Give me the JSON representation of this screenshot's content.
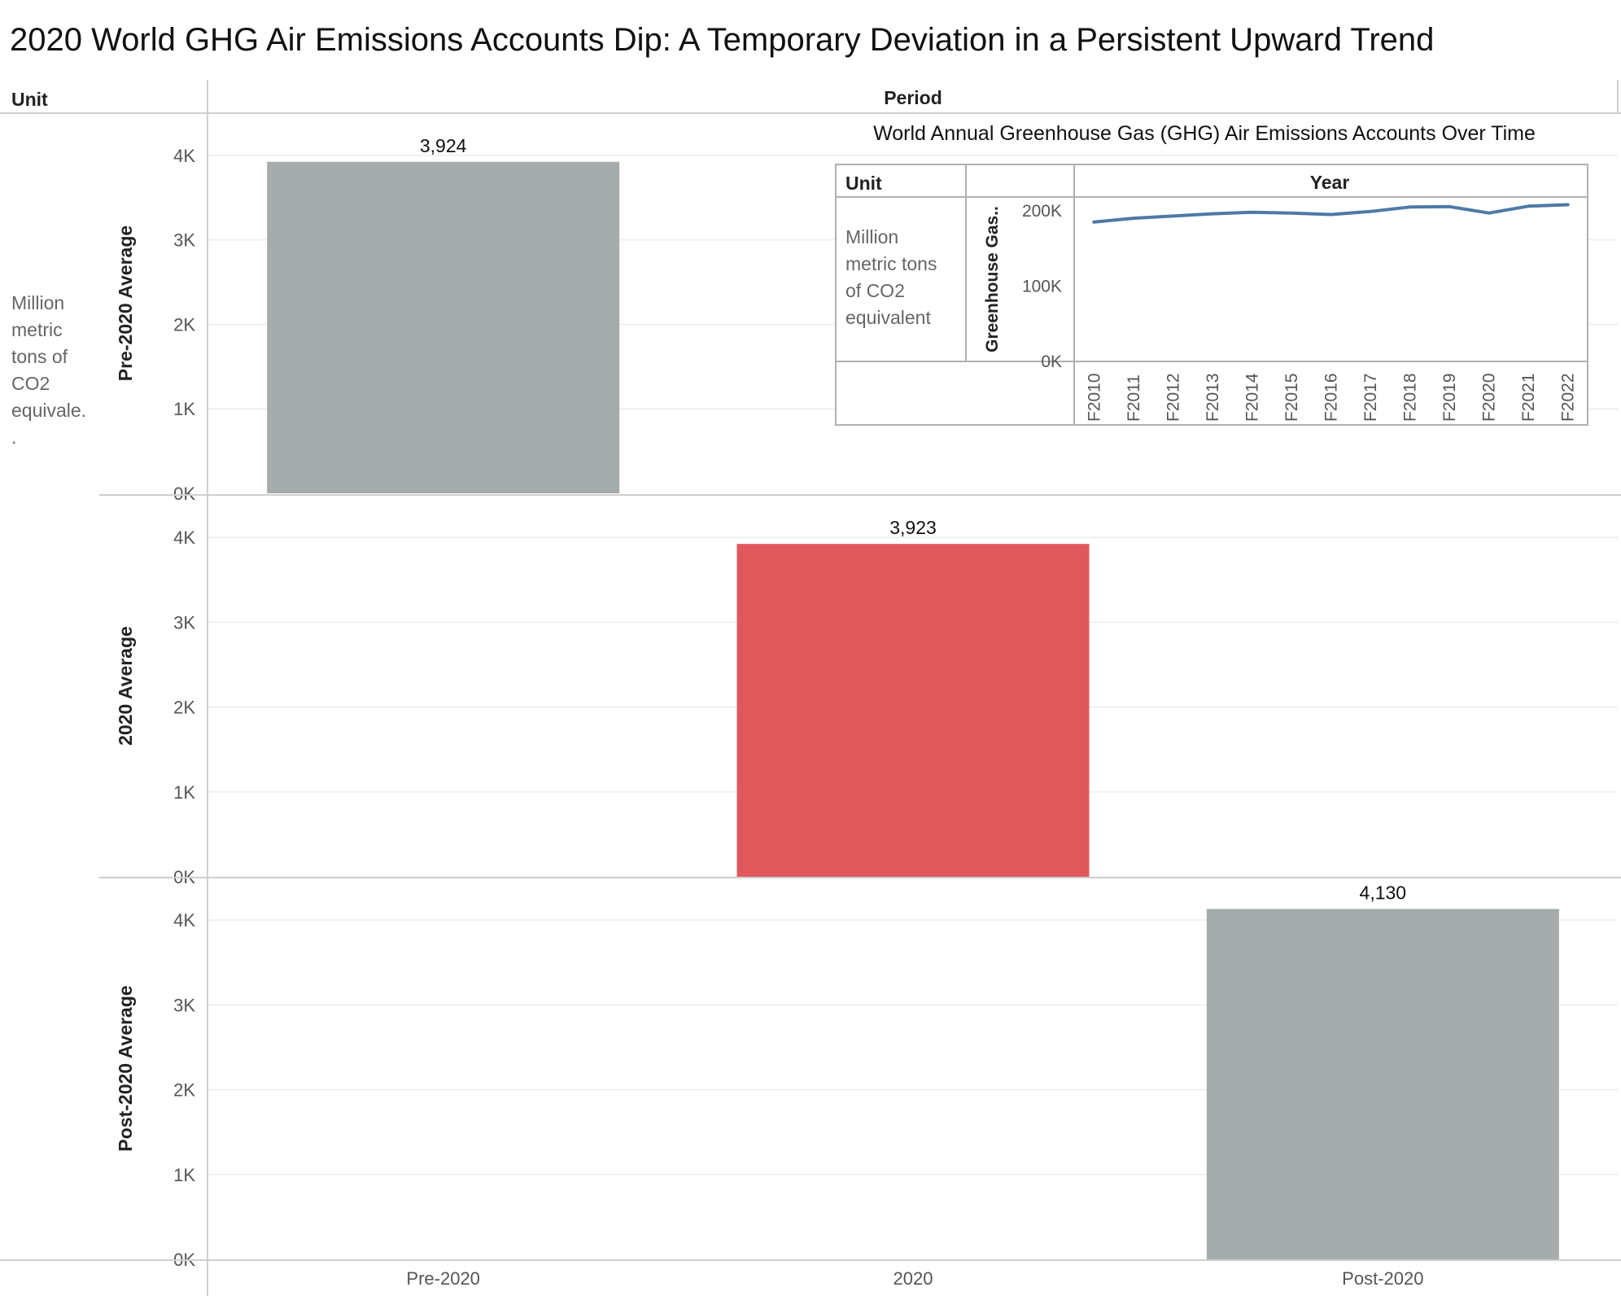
{
  "title": "2020 World GHG Air Emissions Accounts Dip: A Temporary Deviation in a Persistent Upward Trend",
  "headers": {
    "unit": "Unit",
    "period": "Period"
  },
  "unit_lines": [
    "Million",
    "metric",
    "tons of",
    "CO2",
    "equivale.",
    "."
  ],
  "colors": {
    "gray": "#a6abab",
    "red": "#e0585c",
    "line": "#4e79a7"
  },
  "chart_data": [
    {
      "type": "bar",
      "categories": [
        "Pre-2020",
        "2020",
        "Post-2020"
      ],
      "rows": [
        "Pre-2020 Average",
        "2020 Average",
        "Post-2020 Average"
      ],
      "values": [
        3924,
        3923,
        4130
      ],
      "value_labels": [
        "3,924",
        "3,923",
        "4,130"
      ],
      "highlight": [
        "gray",
        "red",
        "gray"
      ],
      "yticks": [
        "0K",
        "1K",
        "2K",
        "3K",
        "4K"
      ],
      "ylim": [
        0,
        4500
      ],
      "grid": true
    },
    {
      "type": "line",
      "title": "World Annual Greenhouse Gas (GHG) Air Emissions Accounts Over Time",
      "col_header": "Year",
      "unit_header": "Unit",
      "unit_lines": [
        "Million",
        "metric tons",
        "of CO2",
        "equivalent"
      ],
      "ylabel": "Greenhouse Gas..",
      "x": [
        "F2010",
        "F2011",
        "F2012",
        "F2013",
        "F2014",
        "F2015",
        "F2016",
        "F2017",
        "F2018",
        "F2019",
        "F2020",
        "F2021",
        "F2022"
      ],
      "y": [
        185000,
        190000,
        193000,
        196000,
        198000,
        197000,
        195000,
        199000,
        205000,
        205500,
        197000,
        206000,
        208000
      ],
      "yticks": [
        "0K",
        "100K",
        "200K"
      ],
      "ylim": [
        0,
        215000
      ]
    }
  ]
}
